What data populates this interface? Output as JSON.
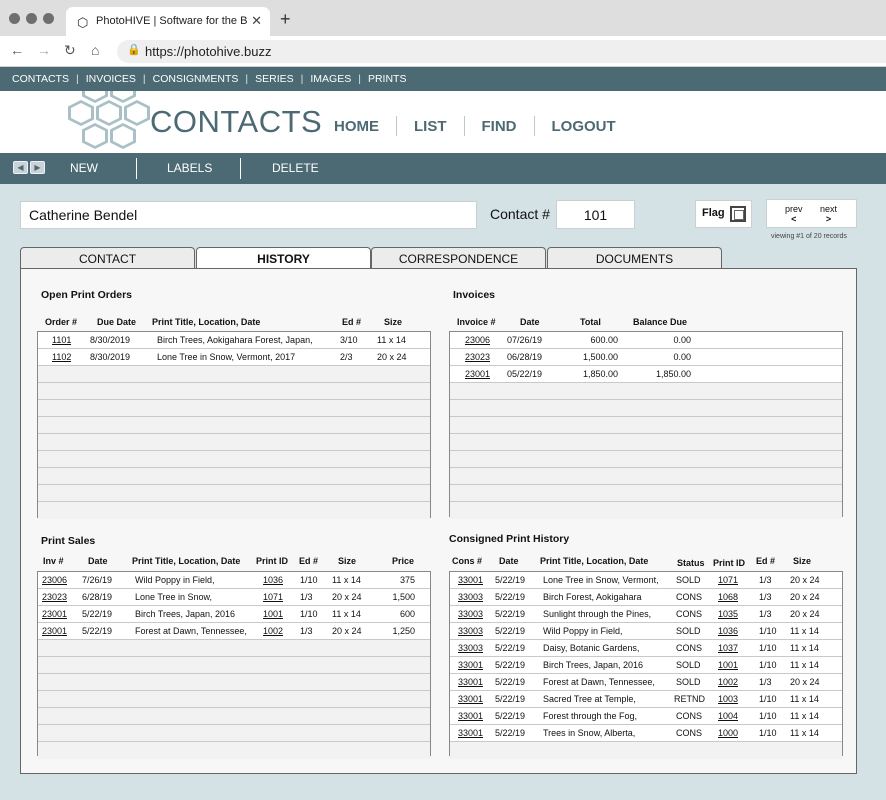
{
  "browser": {
    "tab_title": "PhotoHIVE | Software for the B",
    "url": "https://photohive.buzz"
  },
  "topnav": [
    "CONTACTS",
    "INVOICES",
    "CONSIGNMENTS",
    "SERIES",
    "IMAGES",
    "PRINTS"
  ],
  "header": {
    "title": "CONTACTS",
    "nav": [
      "HOME",
      "LIST",
      "FIND",
      "LOGOUT"
    ]
  },
  "toolbar": {
    "new": "NEW",
    "labels": "LABELS",
    "delete": "DELETE"
  },
  "contact": {
    "name": "Catherine Bendel",
    "label": "Contact #",
    "number": "101",
    "flag_label": "Flag"
  },
  "pager": {
    "prev": "prev",
    "next": "next",
    "prev_glyph": "<",
    "next_glyph": ">",
    "viewing": "viewing #1 of 20 records"
  },
  "tabs": [
    "CONTACT",
    "HISTORY",
    "CORRESPONDENCE",
    "DOCUMENTS"
  ],
  "open_orders": {
    "title": "Open Print Orders",
    "headers": [
      "Order #",
      "Due Date",
      "Print Title, Location, Date",
      "Ed #",
      "Size"
    ],
    "rows": [
      [
        "1101",
        "8/30/2019",
        "Birch Trees, Aokigahara Forest, Japan,",
        "3/10",
        "11 x 14"
      ],
      [
        "1102",
        "8/30/2019",
        "Lone Tree in Snow, Vermont, 2017",
        "2/3",
        "20 x 24"
      ]
    ]
  },
  "invoices": {
    "title": "Invoices",
    "headers": [
      "Invoice #",
      "Date",
      "Total",
      "Balance Due"
    ],
    "rows": [
      [
        "23006",
        "07/26/19",
        "600.00",
        "0.00"
      ],
      [
        "23023",
        "06/28/19",
        "1,500.00",
        "0.00"
      ],
      [
        "23001",
        "05/22/19",
        "1,850.00",
        "1,850.00"
      ]
    ]
  },
  "print_sales": {
    "title": "Print Sales",
    "headers": [
      "Inv #",
      "Date",
      "Print Title, Location, Date",
      "Print ID",
      "Ed #",
      "Size",
      "Price"
    ],
    "rows": [
      [
        "23006",
        "7/26/19",
        "Wild Poppy in Field,",
        "1036",
        "1/10",
        "11 x 14",
        "375"
      ],
      [
        "23023",
        "6/28/19",
        "Lone Tree in Snow,",
        "1071",
        "1/3",
        "20 x 24",
        "1,500"
      ],
      [
        "23001",
        "5/22/19",
        "Birch Trees, Japan, 2016",
        "1001",
        "1/10",
        "11 x 14",
        "600"
      ],
      [
        "23001",
        "5/22/19",
        "Forest at Dawn, Tennessee,",
        "1002",
        "1/3",
        "20 x 24",
        "1,250"
      ]
    ]
  },
  "consigned": {
    "title": "Consigned Print History",
    "headers": [
      "Cons #",
      "Date",
      "Print Title, Location, Date",
      "Status",
      "Print ID",
      "Ed #",
      "Size"
    ],
    "rows": [
      [
        "33001",
        "5/22/19",
        "Lone Tree in Snow, Vermont,",
        "SOLD",
        "1071",
        "1/3",
        "20 x 24"
      ],
      [
        "33003",
        "5/22/19",
        "Birch Forest, Aokigahara",
        "CONS",
        "1068",
        "1/3",
        "20 x 24"
      ],
      [
        "33003",
        "5/22/19",
        "Sunlight through the Pines,",
        "CONS",
        "1035",
        "1/3",
        "20 x 24"
      ],
      [
        "33003",
        "5/22/19",
        "Wild Poppy in Field,",
        "SOLD",
        "1036",
        "1/10",
        "11 x 14"
      ],
      [
        "33003",
        "5/22/19",
        "Daisy, Botanic Gardens,",
        "CONS",
        "1037",
        "1/10",
        "11 x 14"
      ],
      [
        "33001",
        "5/22/19",
        "Birch Trees, Japan, 2016",
        "SOLD",
        "1001",
        "1/10",
        "11 x 14"
      ],
      [
        "33001",
        "5/22/19",
        "Forest at Dawn, Tennessee,",
        "SOLD",
        "1002",
        "1/3",
        "20 x 24"
      ],
      [
        "33001",
        "5/22/19",
        "Sacred Tree at Temple,",
        "RETND",
        "1003",
        "1/10",
        "11 x 14"
      ],
      [
        "33001",
        "5/22/19",
        "Forest through the Fog,",
        "CONS",
        "1004",
        "1/10",
        "11 x 14"
      ],
      [
        "33001",
        "5/22/19",
        "Trees in Snow, Alberta,",
        "CONS",
        "1000",
        "1/10",
        "11 x 14"
      ]
    ]
  }
}
